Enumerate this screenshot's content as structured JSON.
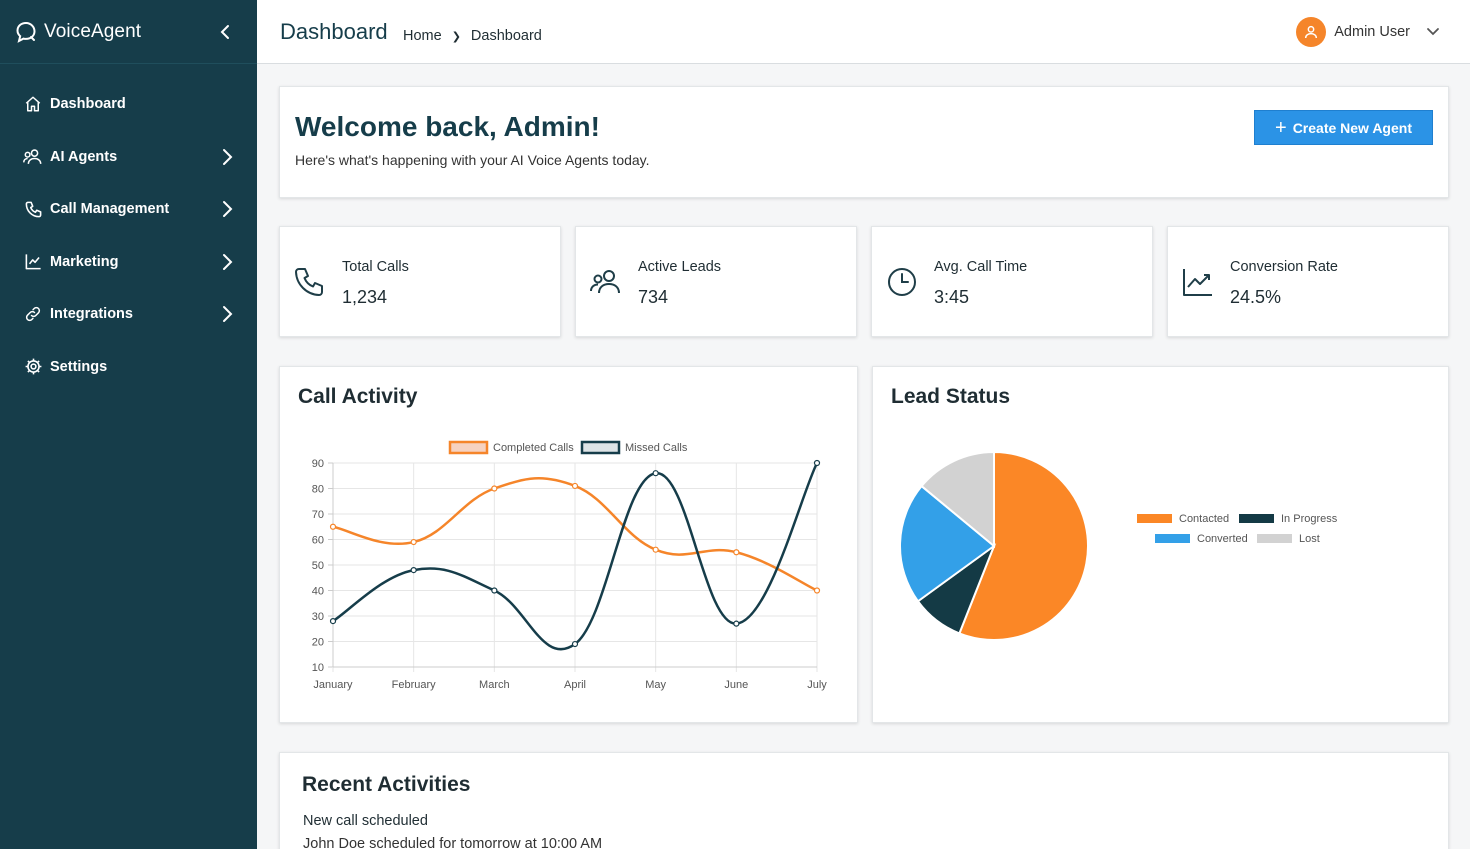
{
  "app": {
    "name": "VoiceAgent"
  },
  "sidebar": {
    "items": [
      {
        "label": "Dashboard",
        "icon": "home-icon"
      },
      {
        "label": "AI Agents",
        "icon": "users-icon"
      },
      {
        "label": "Call Management",
        "icon": "phone-icon"
      },
      {
        "label": "Marketing",
        "icon": "chart-line-icon"
      },
      {
        "label": "Integrations",
        "icon": "link-icon"
      },
      {
        "label": "Settings",
        "icon": "gear-icon"
      }
    ]
  },
  "header": {
    "title": "Dashboard",
    "breadcrumb": [
      "Home",
      "Dashboard"
    ],
    "user": "Admin User"
  },
  "welcome": {
    "title": "Welcome back, Admin!",
    "subtitle": "Here's what's happening with your AI Voice Agents today.",
    "button": "Create New Agent"
  },
  "stats": [
    {
      "label": "Total Calls",
      "value": "1,234",
      "icon": "phone-icon"
    },
    {
      "label": "Active Leads",
      "value": "734",
      "icon": "users-icon"
    },
    {
      "label": "Avg. Call Time",
      "value": "3:45",
      "icon": "clock-icon"
    },
    {
      "label": "Conversion Rate",
      "value": "24.5%",
      "icon": "trend-icon"
    }
  ],
  "chart_data": [
    {
      "type": "line",
      "title": "Call Activity",
      "categories": [
        "January",
        "February",
        "March",
        "April",
        "May",
        "June",
        "July"
      ],
      "series": [
        {
          "name": "Completed Calls",
          "values": [
            65,
            59,
            80,
            81,
            56,
            55,
            40
          ],
          "color": "#f5852a"
        },
        {
          "name": "Missed Calls",
          "values": [
            28,
            48,
            40,
            19,
            86,
            27,
            90
          ],
          "color": "#163d4a"
        }
      ],
      "ylim": [
        10,
        90
      ],
      "yticks": [
        10,
        20,
        30,
        40,
        50,
        60,
        70,
        80,
        90
      ],
      "grid": true,
      "legend": "top"
    },
    {
      "type": "pie",
      "title": "Lead Status",
      "labels": [
        "Contacted",
        "In Progress",
        "Converted",
        "Lost"
      ],
      "values": [
        56,
        9,
        21,
        14
      ],
      "colors": [
        "#fb8726",
        "#143a45",
        "#33a0e8",
        "#d2d2d2"
      ],
      "legend": "right"
    }
  ],
  "recent": {
    "title": "Recent Activities",
    "items": [
      {
        "title": "New call scheduled",
        "desc": "John Doe scheduled for tomorrow at 10:00 AM"
      }
    ]
  }
}
